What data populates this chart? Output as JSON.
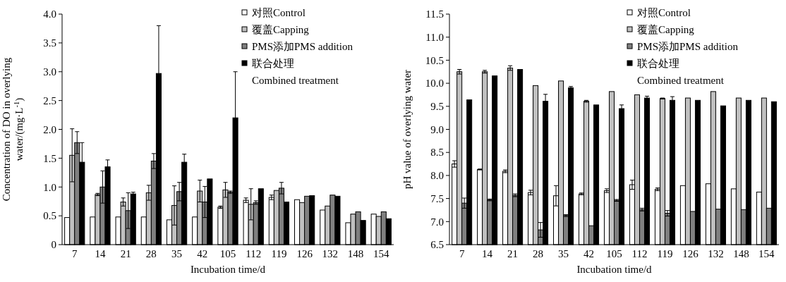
{
  "chart_data": [
    {
      "type": "bar",
      "xlabel": "Incubation time/d",
      "ylabel": "Concentration of DO in overlying water/(mg·L$^{-1}$)",
      "categories": [
        "7",
        "14",
        "21",
        "28",
        "35",
        "42",
        "105",
        "112",
        "119",
        "126",
        "132",
        "148",
        "154"
      ],
      "ylim": [
        0,
        4
      ],
      "yticks": [
        0,
        0.5,
        {
          "value": 1,
          "label": "1.0"
        },
        1.5,
        {
          "value": 2,
          "label": "2.0"
        },
        2.5,
        {
          "value": 3,
          "label": "3.0"
        },
        3.5,
        {
          "value": 4,
          "label": "4.0"
        }
      ],
      "legend": "top right",
      "series": [
        {
          "name": "对照Control",
          "color": "#ffffff",
          "values": [
            0.47,
            0.48,
            0.48,
            0.48,
            0.43,
            0.48,
            0.65,
            0.77,
            0.82,
            0.78,
            0.6,
            0.38,
            0.53
          ],
          "errors": [
            null,
            null,
            null,
            null,
            null,
            null,
            0.02,
            0.04,
            0.04,
            null,
            null,
            null,
            null
          ]
        },
        {
          "name": "覆盖Capping",
          "color": "#c0c0c0",
          "values": [
            1.55,
            0.87,
            0.74,
            0.9,
            0.68,
            0.93,
            0.95,
            0.7,
            0.94,
            0.73,
            0.67,
            0.53,
            0.49
          ],
          "errors": [
            0.46,
            0.02,
            0.07,
            0.13,
            0.34,
            0.19,
            0.13,
            0.27,
            null,
            null,
            null,
            null,
            null
          ]
        },
        {
          "name": "PMS添加PMS addition",
          "color": "#808080",
          "values": [
            1.77,
            1.0,
            0.59,
            1.45,
            0.92,
            0.74,
            0.91,
            0.73,
            0.98,
            0.84,
            0.86,
            0.57,
            0.57
          ],
          "errors": [
            0.19,
            0.28,
            0.31,
            0.13,
            0.16,
            0.27,
            0.02,
            0.03,
            0.1,
            null,
            null,
            null,
            null
          ]
        },
        {
          "name": "联合处理\nCombined treatment",
          "color": "#000000",
          "values": [
            1.43,
            1.35,
            0.88,
            2.97,
            1.43,
            1.14,
            2.2,
            0.97,
            0.74,
            0.85,
            0.84,
            0.42,
            0.45
          ],
          "errors": [
            0.34,
            0.12,
            0.03,
            0.83,
            0.14,
            null,
            0.8,
            null,
            null,
            null,
            null,
            null,
            null
          ]
        }
      ]
    },
    {
      "type": "bar",
      "xlabel": "Incubation time/d",
      "ylabel": "pH value of overlying water",
      "categories": [
        "7",
        "14",
        "21",
        "28",
        "35",
        "42",
        "105",
        "112",
        "119",
        "126",
        "132",
        "148",
        "154"
      ],
      "ylim": [
        6.5,
        11.5
      ],
      "yticks": [
        6.5,
        {
          "value": 7,
          "label": "7.0"
        },
        7.5,
        {
          "value": 8,
          "label": "8.0"
        },
        8.5,
        {
          "value": 9,
          "label": "9.0"
        },
        9.5,
        {
          "value": 10,
          "label": "10.0"
        },
        10.5,
        {
          "value": 11,
          "label": "11.0"
        },
        11.5
      ],
      "legend": "top right",
      "series": [
        {
          "name": "对照Control",
          "color": "#ffffff",
          "values": [
            8.25,
            8.13,
            8.09,
            7.63,
            7.56,
            7.6,
            7.67,
            7.8,
            7.7,
            7.78,
            7.82,
            7.71,
            7.64
          ],
          "errors": [
            0.07,
            0.01,
            0.03,
            0.05,
            0.22,
            0.02,
            0.04,
            0.1,
            0.03,
            null,
            null,
            null,
            null
          ]
        },
        {
          "name": "覆盖Capping",
          "color": "#c0c0c0",
          "values": [
            10.25,
            10.25,
            10.33,
            9.95,
            10.05,
            9.61,
            9.82,
            9.75,
            9.67,
            9.68,
            9.82,
            9.68,
            9.68
          ],
          "errors": [
            0.05,
            0.03,
            0.05,
            null,
            null,
            0.02,
            null,
            null,
            0.01,
            null,
            null,
            null,
            null
          ]
        },
        {
          "name": "PMS添加PMS addition",
          "color": "#808080",
          "values": [
            7.4,
            7.47,
            7.57,
            6.82,
            7.13,
            6.91,
            7.46,
            7.26,
            7.18,
            7.22,
            7.27,
            7.26,
            7.29
          ],
          "errors": [
            0.11,
            0.02,
            0.03,
            0.16,
            0.02,
            null,
            0.02,
            0.03,
            0.06,
            null,
            null,
            null,
            null
          ]
        },
        {
          "name": "联合处理\nCombined treatment",
          "color": "#000000",
          "values": [
            9.64,
            10.16,
            10.3,
            9.61,
            9.9,
            9.53,
            9.45,
            9.68,
            9.63,
            9.63,
            9.51,
            9.63,
            9.6
          ],
          "errors": [
            null,
            null,
            null,
            0.15,
            0.03,
            null,
            0.08,
            0.04,
            0.08,
            null,
            null,
            null,
            null
          ]
        }
      ]
    }
  ]
}
